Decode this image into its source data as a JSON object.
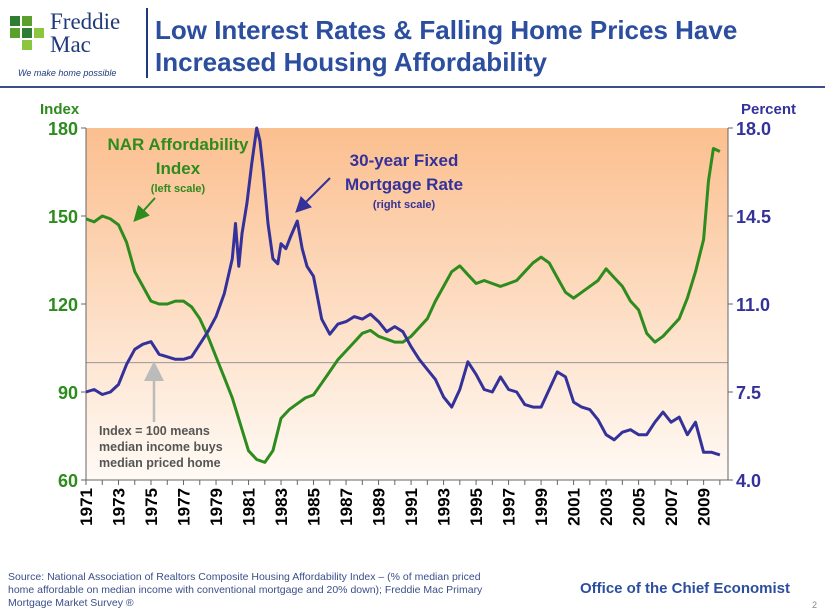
{
  "header": {
    "logo_line1": "Freddie",
    "logo_line2": "Mac",
    "logo_tagline": "We make home possible",
    "title_line1": "Low Interest Rates & Falling Home Prices Have",
    "title_line2": "Increased Housing Affordability"
  },
  "footer": {
    "source_line1": "Source: National Association of Realtors Composite Housing Affordability Index – (% of median priced",
    "source_line2": "home affordable on median income with conventional mortgage and 20% down); Freddie Mac Primary",
    "source_line3": "Mortgage Market Survey ®",
    "office": "Office of the Chief Economist",
    "page": "2"
  },
  "colors": {
    "green": "#2e8b1e",
    "navy": "#34329a",
    "title_blue": "#2c4e9e",
    "bg_top": "#fbbf8f",
    "bg_bottom": "#fffaf5"
  },
  "chart_data": {
    "type": "line",
    "ylabel_left": "Index",
    "ylabel_right": "Percent",
    "ylim_left": [
      60,
      180
    ],
    "ylim_right": [
      4.0,
      18.0
    ],
    "yticks_left": [
      "60",
      "90",
      "120",
      "150",
      "180"
    ],
    "yticks_right": [
      "4.0",
      "7.5",
      "11.0",
      "14.5",
      "18.0"
    ],
    "xlim": [
      1971,
      2010.5
    ],
    "xticks": [
      "1971",
      "1973",
      "1975",
      "1977",
      "1979",
      "1981",
      "1983",
      "1985",
      "1987",
      "1989",
      "1991",
      "1993",
      "1995",
      "1997",
      "1999",
      "2001",
      "2003",
      "2005",
      "2007",
      "2009"
    ],
    "reference_line": 100,
    "annotations": {
      "nar_line1": "NAR Affordability",
      "nar_line2": "Index",
      "nar_scale": "(left scale)",
      "mort_line1": "30-year Fixed",
      "mort_line2": "Mortgage Rate",
      "mort_scale": "(right scale)",
      "ref_line1": "Index = 100 means",
      "ref_line2": "median income buys",
      "ref_line3": "median priced home"
    },
    "series": [
      {
        "name": "NAR Affordability Index",
        "axis": "left",
        "x": [
          1971,
          1971.5,
          1972,
          1972.5,
          1973,
          1973.5,
          1974,
          1974.5,
          1975,
          1975.5,
          1976,
          1976.5,
          1977,
          1977.5,
          1978,
          1978.5,
          1979,
          1979.5,
          1980,
          1980.5,
          1981,
          1981.5,
          1982,
          1982.5,
          1983,
          1983.5,
          1984,
          1984.5,
          1985,
          1985.5,
          1986,
          1986.5,
          1987,
          1987.5,
          1988,
          1988.5,
          1989,
          1989.5,
          1990,
          1990.5,
          1991,
          1991.5,
          1992,
          1992.5,
          1993,
          1993.5,
          1994,
          1994.5,
          1995,
          1995.5,
          1996,
          1996.5,
          1997,
          1997.5,
          1998,
          1998.5,
          1999,
          1999.5,
          2000,
          2000.5,
          2001,
          2001.5,
          2002,
          2002.5,
          2003,
          2003.5,
          2004,
          2004.5,
          2005,
          2005.5,
          2006,
          2006.5,
          2007,
          2007.5,
          2008,
          2008.5,
          2009,
          2009.3,
          2009.6,
          2010
        ],
        "values": [
          149,
          148,
          150,
          149,
          147,
          141,
          131,
          126,
          121,
          120,
          120,
          121,
          121,
          119,
          115,
          109,
          102,
          95,
          88,
          79,
          70,
          67,
          66,
          70,
          81,
          84,
          86,
          88,
          89,
          93,
          97,
          101,
          104,
          107,
          110,
          111,
          109,
          108,
          107,
          107,
          109,
          112,
          115,
          121,
          126,
          131,
          133,
          130,
          127,
          128,
          127,
          126,
          127,
          128,
          131,
          134,
          136,
          134,
          129,
          124,
          122,
          124,
          126,
          128,
          132,
          129,
          126,
          121,
          118,
          110,
          107,
          109,
          112,
          115,
          122,
          131,
          142,
          162,
          173,
          172
        ]
      },
      {
        "name": "30-year Fixed Mortgage Rate",
        "axis": "right",
        "x": [
          1971,
          1971.5,
          1972,
          1972.5,
          1973,
          1973.5,
          1974,
          1974.5,
          1975,
          1975.5,
          1976,
          1976.5,
          1977,
          1977.5,
          1978,
          1978.5,
          1979,
          1979.5,
          1980,
          1980.2,
          1980.4,
          1980.6,
          1980.9,
          1981.2,
          1981.5,
          1981.7,
          1981.9,
          1982.2,
          1982.5,
          1982.8,
          1983,
          1983.3,
          1983.6,
          1984,
          1984.3,
          1984.6,
          1985,
          1985.5,
          1986,
          1986.5,
          1987,
          1987.5,
          1988,
          1988.5,
          1989,
          1989.5,
          1990,
          1990.5,
          1991,
          1991.5,
          1992,
          1992.5,
          1993,
          1993.5,
          1994,
          1994.5,
          1995,
          1995.5,
          1996,
          1996.5,
          1997,
          1997.5,
          1998,
          1998.5,
          1999,
          1999.5,
          2000,
          2000.5,
          2001,
          2001.5,
          2002,
          2002.5,
          2003,
          2003.5,
          2004,
          2004.5,
          2005,
          2005.5,
          2006,
          2006.5,
          2007,
          2007.5,
          2008,
          2008.5,
          2009,
          2009.5,
          2010
        ],
        "values": [
          7.5,
          7.6,
          7.4,
          7.5,
          7.8,
          8.6,
          9.2,
          9.4,
          9.5,
          9.0,
          8.9,
          8.8,
          8.8,
          8.9,
          9.4,
          9.9,
          10.5,
          11.4,
          12.8,
          14.2,
          12.5,
          13.8,
          15.0,
          16.6,
          18.0,
          17.5,
          16.3,
          14.2,
          12.8,
          12.6,
          13.4,
          13.2,
          13.7,
          14.3,
          13.2,
          12.5,
          12.1,
          10.4,
          9.8,
          10.2,
          10.3,
          10.5,
          10.4,
          10.6,
          10.3,
          9.9,
          10.1,
          9.9,
          9.3,
          8.8,
          8.4,
          8.0,
          7.3,
          6.9,
          7.6,
          8.7,
          8.2,
          7.6,
          7.5,
          8.1,
          7.6,
          7.5,
          7.0,
          6.9,
          6.9,
          7.6,
          8.3,
          8.1,
          7.1,
          6.9,
          6.8,
          6.4,
          5.8,
          5.6,
          5.9,
          6.0,
          5.8,
          5.8,
          6.3,
          6.7,
          6.3,
          6.5,
          5.8,
          6.3,
          5.1,
          5.1,
          5.0
        ]
      }
    ]
  }
}
